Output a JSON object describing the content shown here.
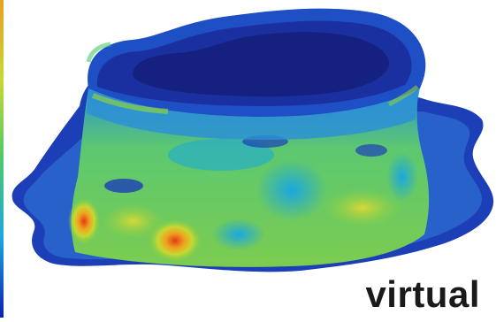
{
  "caption": "virtual",
  "colormap": {
    "low": "#0b1fb0",
    "mid_low": "#1aa7e0",
    "mid": "#4cc96a",
    "mid_high": "#c8d830",
    "high": "#e23a14"
  },
  "colorbar_icon": "scale-bar-icon",
  "model_icon": "deformed-shell-icon"
}
